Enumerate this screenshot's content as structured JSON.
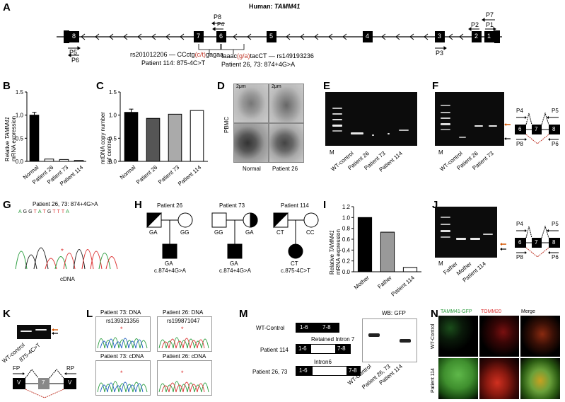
{
  "panels": [
    "A",
    "B",
    "C",
    "D",
    "E",
    "F",
    "G",
    "H",
    "I",
    "J",
    "K",
    "L",
    "M",
    "N"
  ],
  "panel_a": {
    "title": "Human: ",
    "gene": "TAMM41",
    "exons": [
      "8",
      "7",
      "6",
      "5",
      "4",
      "3",
      "2",
      "1"
    ],
    "primers": {
      "p8": "P8",
      "p4": "P4",
      "p5": "P5",
      "p6": "P6",
      "p3": "P3",
      "p2": "P2",
      "p1": "P1",
      "p7": "P7"
    },
    "variant_left_prefix": "rs201012206 — CCctg",
    "variant_left_allele": "(c/t)",
    "variant_left_suffix": "gagaa",
    "variant_left_patient": "Patient 114: 875-4C>T",
    "variant_right_prefix": "taaac",
    "variant_right_allele": "(g/a)",
    "variant_right_suffix": "tacCT — rs149193236",
    "variant_right_patient": "Patient 26, 73: 874+4G>A"
  },
  "panel_b": {
    "ylabel_line1": "Relative ",
    "ylabel_gene": "TAMM41",
    "ylabel_line2": "mRNA expression",
    "yticks": [
      "0.0",
      "0.5",
      "1.0",
      "1.5"
    ]
  },
  "panel_c": {
    "ylabel_line1": "mtDNA copy number",
    "ylabel_line2": "(of control)",
    "yticks": [
      "0.0",
      "0.5",
      "1.0",
      "1.5"
    ]
  },
  "panel_d": {
    "side_label": "PBMC",
    "scale1": "2μm",
    "scale2": "2μm",
    "col1": "Normal",
    "col2": "Patient 26"
  },
  "panel_e": {
    "lanes": [
      "M",
      "WT-control",
      "Patient 26",
      "Patient 73",
      "Patient 114"
    ]
  },
  "panel_f": {
    "lanes": [
      "M",
      "WT-control",
      "Patient 26",
      "Patient 73"
    ],
    "p4": "P4",
    "p5": "P5",
    "p8": "P8",
    "p6": "P6",
    "exon6": "6",
    "exon7": "7",
    "exon8": "8"
  },
  "panel_g": {
    "title": "Patient 26, 73: 874+4G>A",
    "xlabel": "cDNA",
    "seq": [
      "A",
      "G",
      "G",
      "T",
      "A",
      "T",
      "G",
      "T",
      "T",
      "T",
      "A"
    ]
  },
  "panel_h": {
    "fam1": "Patient 26",
    "fam2": "Patient 73",
    "fam3": "Patient 114",
    "f1_father": "GA",
    "f1_mother": "GG",
    "f1_child": "GA",
    "f1_mut": "c.874+4G>A",
    "f2_father": "GG",
    "f2_mother": "GA",
    "f2_child": "GA",
    "f2_mut": "c.874+4G>A",
    "f3_father": "CT",
    "f3_mother": "CC",
    "f3_child": "CT",
    "f3_mut": "c.875-4C>T"
  },
  "panel_i": {
    "ylabel_line1": "Relative ",
    "ylabel_gene": "TAMM41",
    "ylabel_line2": "mRNA expression",
    "yticks": [
      "0.0",
      "0.2",
      "0.4",
      "0.6",
      "0.8",
      "1.0",
      "1.2"
    ]
  },
  "panel_j": {
    "lanes": [
      "M",
      "Father",
      "Mother",
      "Patient 114"
    ],
    "p4": "P4",
    "p5": "P5",
    "p8": "P8",
    "p6": "P6",
    "exon6": "6",
    "exon7": "7",
    "exon8": "8"
  },
  "panel_k": {
    "lanes": [
      "WT-control",
      "875-4C>T"
    ],
    "fp": "FP",
    "rp": "RP",
    "ex_left": "V",
    "ex_mid": "7",
    "ex_right": "V"
  },
  "panel_l": {
    "t1": "Patient 73: DNA",
    "t2": "Patient 26: DNA",
    "t3": "Patient 73: cDNA",
    "t4": "Patient 26: cDNA",
    "rs1": "rs139321356",
    "rs2": "rs199871047"
  },
  "panel_m": {
    "row1_label": "WT-Control",
    "row1_a": "1-6",
    "row1_b": "7-8",
    "retained": "Retained Intron 7",
    "row2_label": "Patient 114",
    "row2_a": "1-6",
    "row2_b": "7-8",
    "intron6": "Intron6",
    "row3_label": "Patient 26, 73",
    "row3_a": "1-6",
    "row3_b": "7-8",
    "wb_title": "WB: GFP",
    "wb_lanes": [
      "WT-Control",
      "Patient 26, 73",
      "Patient 114"
    ]
  },
  "panel_n": {
    "h1": "TAMM41-GFP",
    "h2": "TOMM20",
    "h3": "Merge",
    "r1": "WT-Control",
    "r2": "Patient 114"
  },
  "chart_data": [
    {
      "type": "bar",
      "title": "",
      "categories": [
        "Normal",
        "Patient 26",
        "Patient 73",
        "Patient 114"
      ],
      "values": [
        1.0,
        0.05,
        0.04,
        0.02
      ],
      "error": [
        0.06,
        0,
        0,
        0
      ],
      "ylabel": "Relative TAMM41 mRNA expression",
      "ylim": [
        0,
        1.5
      ],
      "colors": [
        "#000000",
        "#ffffff",
        "#ffffff",
        "#ffffff"
      ]
    },
    {
      "type": "bar",
      "title": "",
      "categories": [
        "Normal",
        "Patient 26",
        "Patient 73",
        "Patient 114"
      ],
      "values": [
        1.06,
        0.93,
        1.02,
        1.1
      ],
      "error": [
        0.07,
        0,
        0,
        0
      ],
      "ylabel": "mtDNA copy number (of control)",
      "ylim": [
        0,
        1.5
      ],
      "colors": [
        "#000000",
        "#555555",
        "#aaaaaa",
        "#ffffff"
      ]
    },
    {
      "type": "bar",
      "title": "",
      "categories": [
        "Mother",
        "Father",
        "Patient 114"
      ],
      "values": [
        1.0,
        0.73,
        0.08
      ],
      "ylabel": "Relative TAMM41 mRNA expression",
      "ylim": [
        0,
        1.2
      ],
      "colors": [
        "#000000",
        "#999999",
        "#ffffff"
      ]
    }
  ]
}
